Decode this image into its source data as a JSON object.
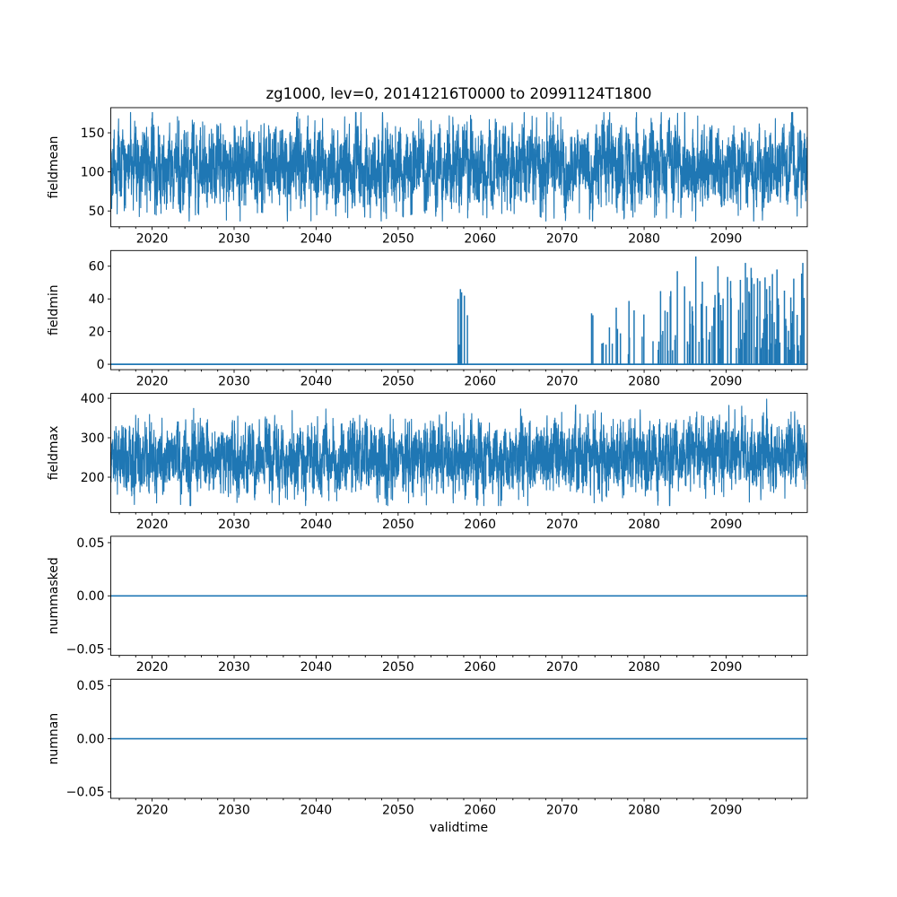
{
  "figure": {
    "title": "zg1000, lev=0, 20141216T0000 to 20991124T1800",
    "xlabel": "validtime",
    "line_color": "#1f77b4",
    "background_color": "#ffffff",
    "text_color": "#000000",
    "panel_count": 5
  },
  "x_axis": {
    "label": "validtime",
    "min": 2014.96,
    "max": 2099.9,
    "major_ticks": [
      2020,
      2030,
      2040,
      2050,
      2060,
      2070,
      2080,
      2090
    ],
    "major_tick_labels": [
      "2020",
      "2030",
      "2040",
      "2050",
      "2060",
      "2070",
      "2080",
      "2090"
    ],
    "minor_tick_start": 2016,
    "minor_tick_step": 2
  },
  "chart_data": [
    {
      "type": "line",
      "panel": "fieldmean",
      "ylabel": "fieldmean",
      "ylim": [
        29.8,
        182.2
      ],
      "ytick_vals": [
        50,
        100,
        150
      ],
      "ytick_labels": [
        "50",
        "100",
        "150"
      ],
      "series_summary": {
        "description": "dense 6-hourly noisy series, no trend",
        "approx_mean": 106,
        "approx_min": 37,
        "approx_max": 176,
        "typical_band": [
          60,
          150
        ]
      },
      "render": {
        "kind": "noise",
        "seed": 42,
        "n": 6000,
        "mean": 106,
        "std": 25,
        "ar": 0.55,
        "season_amp": 8,
        "clip": [
          37,
          176
        ]
      }
    },
    {
      "type": "line",
      "panel": "fieldmin",
      "ylabel": "fieldmin",
      "ylim": [
        -3.3,
        69.6
      ],
      "ytick_vals": [
        0,
        20,
        40,
        60
      ],
      "ytick_labels": [
        "0",
        "20",
        "40",
        "60"
      ],
      "series_summary": {
        "description": "flat at 0 with two spike periods",
        "baseline": 0,
        "spike_period_1": "cluster near 2057-2058 with peaks ~40-46",
        "spike_period_2": "frequent spikes 2074-2099, heights up to ~66, densest after 2080"
      },
      "render": {
        "kind": "spikes",
        "baseline": 0,
        "fixed_spikes": [
          [
            2057.32,
            40
          ],
          [
            2057.46,
            12
          ],
          [
            2057.6,
            46
          ],
          [
            2057.74,
            44
          ],
          [
            2058.08,
            42
          ],
          [
            2058.45,
            30
          ],
          [
            2073.75,
            30
          ],
          [
            2084.05,
            57
          ],
          [
            2086.3,
            66
          ],
          [
            2089.0,
            60
          ],
          [
            2092.35,
            62
          ],
          [
            2093.05,
            59
          ],
          [
            2096.2,
            58
          ],
          [
            2099.35,
            62
          ]
        ],
        "gen": {
          "seed": 7,
          "x_start": 2073.6,
          "x_end": 2099.85,
          "step": 0.07,
          "p_start": 0.12,
          "p_end": 0.55,
          "h_start": 32,
          "h_end": 56
        }
      }
    },
    {
      "type": "line",
      "panel": "fieldmax",
      "ylabel": "fieldmax",
      "ylim": [
        110.5,
        412.5
      ],
      "ytick_vals": [
        200,
        300,
        400
      ],
      "ytick_labels": [
        "200",
        "300",
        "400"
      ],
      "series_summary": {
        "description": "dense 6-hourly noisy series with slight late-century rise",
        "approx_mean": 248,
        "approx_min": 128,
        "approx_max": 398,
        "typical_band": [
          180,
          330
        ]
      },
      "render": {
        "kind": "noise",
        "seed": 99,
        "n": 6000,
        "mean": 246,
        "std": 42,
        "ar": 0.5,
        "season_amp": 12,
        "clip": [
          128,
          398
        ],
        "trend_start": 2058,
        "trend_amount": 18
      }
    },
    {
      "type": "line",
      "panel": "nummasked",
      "ylabel": "nummasked",
      "ylim": [
        -0.056,
        0.056
      ],
      "ytick_vals": [
        -0.05,
        0,
        0.05
      ],
      "ytick_labels": [
        "−0.05",
        "0.00",
        "0.05"
      ],
      "series_summary": {
        "description": "constant zero line",
        "value": 0
      },
      "render": {
        "kind": "flat",
        "value": 0
      }
    },
    {
      "type": "line",
      "panel": "numnan",
      "ylabel": "numnan",
      "ylim": [
        -0.056,
        0.056
      ],
      "ytick_vals": [
        -0.05,
        0,
        0.05
      ],
      "ytick_labels": [
        "−0.05",
        "0.00",
        "0.05"
      ],
      "series_summary": {
        "description": "constant zero line",
        "value": 0
      },
      "render": {
        "kind": "flat",
        "value": 0
      }
    }
  ]
}
